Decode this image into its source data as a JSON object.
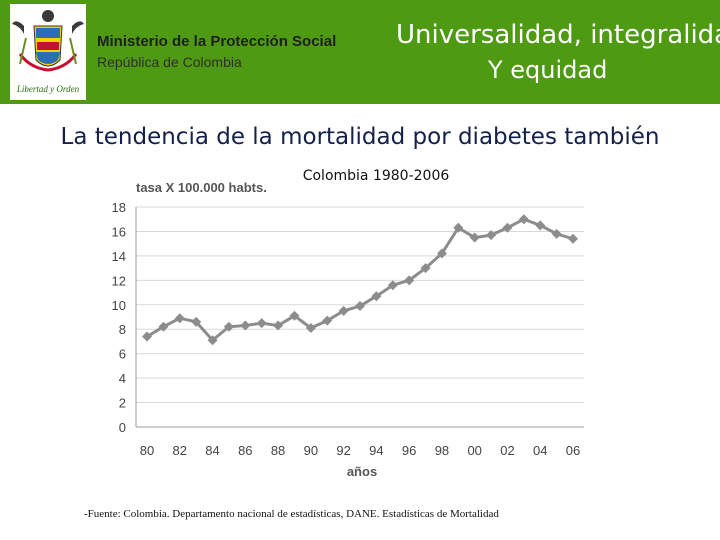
{
  "header": {
    "ministry": "Ministerio de la Protección Social",
    "republic": "República de Colombia",
    "motto_line1": "Universalidad, integralidad",
    "motto_line2": "Y equidad",
    "logo_caption": "Libertad y Orden",
    "banner_color": "#4e9a12"
  },
  "slide": {
    "headline": "La tendencia  de  la mortalidad por diabetes también",
    "source": "-Fuente: Colombia.  Departamento nacional de estadísticas, DANE. Estadísticas de Mortalidad"
  },
  "chart_data": {
    "type": "line",
    "title": "Colombia 1980-2006",
    "ylabel": "tasa  X 100.000 habts.",
    "xlabel": "años",
    "x": [
      1980,
      1981,
      1982,
      1983,
      1984,
      1985,
      1986,
      1987,
      1988,
      1989,
      1990,
      1991,
      1992,
      1993,
      1994,
      1995,
      1996,
      1997,
      1998,
      1999,
      2000,
      2001,
      2002,
      2003,
      2004,
      2005,
      2006
    ],
    "values": [
      7.4,
      8.2,
      8.9,
      8.6,
      7.1,
      8.2,
      8.3,
      8.5,
      8.3,
      9.1,
      8.1,
      8.7,
      9.5,
      9.9,
      10.7,
      11.6,
      12.0,
      13.0,
      14.2,
      16.3,
      15.5,
      15.7,
      16.3,
      17.0,
      16.5,
      15.8,
      15.4
    ],
    "xtick_labels": [
      "80",
      "82",
      "84",
      "86",
      "88",
      "90",
      "92",
      "94",
      "96",
      "98",
      "00",
      "02",
      "04",
      "06"
    ],
    "yticks": [
      0,
      2,
      4,
      6,
      8,
      10,
      12,
      14,
      16,
      18
    ],
    "ylim": [
      0,
      18
    ],
    "grid": true,
    "line_color": "#8c8c8c",
    "marker": "diamond",
    "grid_color": "#d9d9d9"
  }
}
